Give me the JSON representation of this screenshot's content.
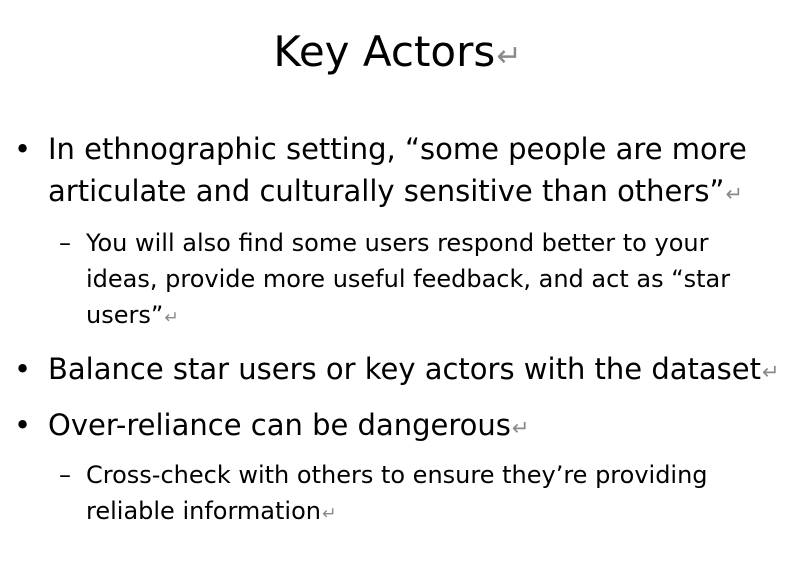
{
  "slide": {
    "title": "Key Actors",
    "bullets": [
      {
        "text": "In ethnographic setting, “some people are more articulate and culturally sensitive than others”",
        "subs": [
          {
            "text": "You will also find some users respond better to your ideas, provide more useful feedback, and act as “star users”"
          }
        ]
      },
      {
        "text": "Balance star users or key actors with the dataset",
        "subs": []
      },
      {
        "text": "Over-reliance can be dangerous",
        "subs": [
          {
            "text": "Cross-check with others to ensure they’re providing reliable information"
          }
        ]
      }
    ],
    "bullet_char": "•",
    "sub_bullet_char": "–",
    "paragraph_mark": "↵",
    "mark_color": "#8a8a8a"
  }
}
